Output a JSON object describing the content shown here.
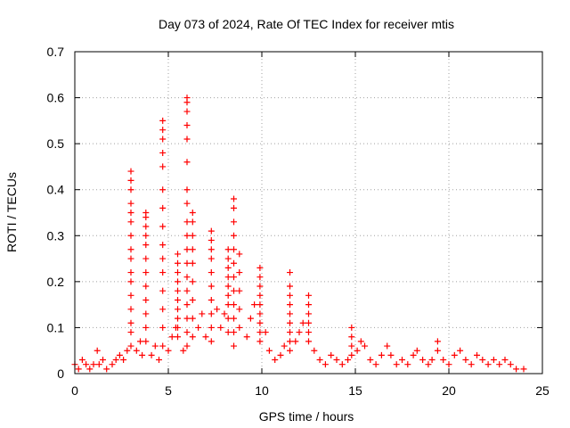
{
  "chart_data": {
    "type": "scatter",
    "title": "Day 073 of 2024, Rate Of TEC Index for receiver mtis",
    "xlabel": "GPS time / hours",
    "ylabel": "ROTI / TECUs",
    "xlim": [
      0,
      25
    ],
    "ylim": [
      0,
      0.7
    ],
    "xticks": [
      "0",
      "5",
      "10",
      "15",
      "20",
      "25"
    ],
    "yticks": [
      "0",
      "0.1",
      "0.2",
      "0.3",
      "0.4",
      "0.5",
      "0.6",
      "0.7"
    ],
    "grid": true,
    "marker": "plus",
    "color": "#ff0000",
    "series": [
      {
        "values": [
          [
            0.0,
            0.02
          ],
          [
            0.2,
            0.01
          ],
          [
            0.4,
            0.03
          ],
          [
            0.6,
            0.02
          ],
          [
            0.8,
            0.01
          ],
          [
            1.0,
            0.02
          ],
          [
            1.2,
            0.05
          ],
          [
            1.3,
            0.02
          ],
          [
            1.5,
            0.03
          ],
          [
            1.7,
            0.01
          ],
          [
            2.0,
            0.02
          ],
          [
            2.2,
            0.03
          ],
          [
            2.4,
            0.04
          ],
          [
            2.6,
            0.03
          ],
          [
            2.8,
            0.05
          ],
          [
            3.0,
            0.44
          ],
          [
            3.0,
            0.42
          ],
          [
            3.0,
            0.4
          ],
          [
            3.0,
            0.37
          ],
          [
            3.0,
            0.35
          ],
          [
            3.0,
            0.33
          ],
          [
            3.0,
            0.3
          ],
          [
            3.0,
            0.27
          ],
          [
            3.0,
            0.25
          ],
          [
            3.0,
            0.22
          ],
          [
            3.0,
            0.2
          ],
          [
            3.0,
            0.17
          ],
          [
            3.0,
            0.14
          ],
          [
            3.0,
            0.11
          ],
          [
            3.0,
            0.09
          ],
          [
            3.0,
            0.06
          ],
          [
            3.3,
            0.05
          ],
          [
            3.5,
            0.07
          ],
          [
            3.6,
            0.04
          ],
          [
            3.8,
            0.35
          ],
          [
            3.8,
            0.34
          ],
          [
            3.8,
            0.32
          ],
          [
            3.8,
            0.3
          ],
          [
            3.8,
            0.28
          ],
          [
            3.8,
            0.25
          ],
          [
            3.8,
            0.22
          ],
          [
            3.8,
            0.19
          ],
          [
            3.8,
            0.16
          ],
          [
            3.8,
            0.13
          ],
          [
            3.8,
            0.1
          ],
          [
            3.8,
            0.07
          ],
          [
            4.1,
            0.04
          ],
          [
            4.3,
            0.06
          ],
          [
            4.5,
            0.03
          ],
          [
            4.7,
            0.55
          ],
          [
            4.7,
            0.53
          ],
          [
            4.7,
            0.51
          ],
          [
            4.7,
            0.48
          ],
          [
            4.7,
            0.45
          ],
          [
            4.7,
            0.4
          ],
          [
            4.7,
            0.36
          ],
          [
            4.7,
            0.32
          ],
          [
            4.7,
            0.28
          ],
          [
            4.7,
            0.25
          ],
          [
            4.7,
            0.22
          ],
          [
            4.7,
            0.18
          ],
          [
            4.7,
            0.14
          ],
          [
            4.7,
            0.1
          ],
          [
            4.7,
            0.06
          ],
          [
            5.0,
            0.05
          ],
          [
            5.2,
            0.08
          ],
          [
            5.4,
            0.1
          ],
          [
            5.5,
            0.26
          ],
          [
            5.5,
            0.24
          ],
          [
            5.5,
            0.22
          ],
          [
            5.5,
            0.2
          ],
          [
            5.5,
            0.18
          ],
          [
            5.5,
            0.16
          ],
          [
            5.5,
            0.14
          ],
          [
            5.5,
            0.12
          ],
          [
            5.5,
            0.1
          ],
          [
            5.5,
            0.08
          ],
          [
            5.8,
            0.05
          ],
          [
            6.0,
            0.6
          ],
          [
            6.0,
            0.59
          ],
          [
            6.0,
            0.57
          ],
          [
            6.0,
            0.54
          ],
          [
            6.0,
            0.51
          ],
          [
            6.0,
            0.46
          ],
          [
            6.0,
            0.4
          ],
          [
            6.0,
            0.37
          ],
          [
            6.0,
            0.33
          ],
          [
            6.0,
            0.3
          ],
          [
            6.0,
            0.27
          ],
          [
            6.0,
            0.24
          ],
          [
            6.0,
            0.21
          ],
          [
            6.0,
            0.18
          ],
          [
            6.0,
            0.15
          ],
          [
            6.0,
            0.12
          ],
          [
            6.0,
            0.09
          ],
          [
            6.0,
            0.06
          ],
          [
            6.3,
            0.35
          ],
          [
            6.3,
            0.33
          ],
          [
            6.3,
            0.3
          ],
          [
            6.3,
            0.27
          ],
          [
            6.3,
            0.24
          ],
          [
            6.3,
            0.2
          ],
          [
            6.3,
            0.16
          ],
          [
            6.3,
            0.12
          ],
          [
            6.3,
            0.08
          ],
          [
            6.6,
            0.1
          ],
          [
            6.8,
            0.13
          ],
          [
            7.0,
            0.08
          ],
          [
            7.3,
            0.31
          ],
          [
            7.3,
            0.29
          ],
          [
            7.3,
            0.27
          ],
          [
            7.3,
            0.25
          ],
          [
            7.3,
            0.22
          ],
          [
            7.3,
            0.19
          ],
          [
            7.3,
            0.16
          ],
          [
            7.3,
            0.13
          ],
          [
            7.3,
            0.1
          ],
          [
            7.3,
            0.07
          ],
          [
            7.6,
            0.14
          ],
          [
            7.8,
            0.1
          ],
          [
            8.0,
            0.13
          ],
          [
            8.2,
            0.27
          ],
          [
            8.2,
            0.25
          ],
          [
            8.2,
            0.23
          ],
          [
            8.2,
            0.21
          ],
          [
            8.2,
            0.19
          ],
          [
            8.2,
            0.17
          ],
          [
            8.2,
            0.15
          ],
          [
            8.2,
            0.12
          ],
          [
            8.2,
            0.09
          ],
          [
            8.5,
            0.38
          ],
          [
            8.5,
            0.36
          ],
          [
            8.5,
            0.33
          ],
          [
            8.5,
            0.3
          ],
          [
            8.5,
            0.27
          ],
          [
            8.5,
            0.24
          ],
          [
            8.5,
            0.21
          ],
          [
            8.5,
            0.18
          ],
          [
            8.5,
            0.15
          ],
          [
            8.5,
            0.12
          ],
          [
            8.5,
            0.09
          ],
          [
            8.5,
            0.06
          ],
          [
            8.8,
            0.26
          ],
          [
            8.8,
            0.22
          ],
          [
            8.8,
            0.18
          ],
          [
            8.8,
            0.14
          ],
          [
            8.8,
            0.1
          ],
          [
            9.2,
            0.08
          ],
          [
            9.4,
            0.12
          ],
          [
            9.6,
            0.15
          ],
          [
            9.9,
            0.23
          ],
          [
            9.9,
            0.21
          ],
          [
            9.9,
            0.19
          ],
          [
            9.9,
            0.17
          ],
          [
            9.9,
            0.15
          ],
          [
            9.9,
            0.13
          ],
          [
            9.9,
            0.11
          ],
          [
            9.9,
            0.09
          ],
          [
            9.9,
            0.07
          ],
          [
            10.2,
            0.09
          ],
          [
            10.4,
            0.05
          ],
          [
            10.7,
            0.03
          ],
          [
            11.0,
            0.04
          ],
          [
            11.2,
            0.06
          ],
          [
            11.5,
            0.22
          ],
          [
            11.5,
            0.19
          ],
          [
            11.5,
            0.17
          ],
          [
            11.5,
            0.15
          ],
          [
            11.5,
            0.13
          ],
          [
            11.5,
            0.11
          ],
          [
            11.5,
            0.09
          ],
          [
            11.5,
            0.07
          ],
          [
            11.5,
            0.05
          ],
          [
            11.8,
            0.07
          ],
          [
            12.0,
            0.09
          ],
          [
            12.2,
            0.11
          ],
          [
            12.5,
            0.17
          ],
          [
            12.5,
            0.15
          ],
          [
            12.5,
            0.13
          ],
          [
            12.5,
            0.11
          ],
          [
            12.5,
            0.09
          ],
          [
            12.5,
            0.07
          ],
          [
            12.8,
            0.05
          ],
          [
            13.1,
            0.03
          ],
          [
            13.4,
            0.02
          ],
          [
            13.7,
            0.04
          ],
          [
            14.0,
            0.03
          ],
          [
            14.3,
            0.02
          ],
          [
            14.6,
            0.03
          ],
          [
            14.8,
            0.1
          ],
          [
            14.8,
            0.08
          ],
          [
            14.8,
            0.06
          ],
          [
            14.8,
            0.04
          ],
          [
            15.1,
            0.05
          ],
          [
            15.3,
            0.07
          ],
          [
            15.5,
            0.06
          ],
          [
            15.8,
            0.03
          ],
          [
            16.1,
            0.02
          ],
          [
            16.4,
            0.04
          ],
          [
            16.7,
            0.06
          ],
          [
            16.9,
            0.04
          ],
          [
            17.2,
            0.02
          ],
          [
            17.5,
            0.03
          ],
          [
            17.8,
            0.02
          ],
          [
            18.1,
            0.04
          ],
          [
            18.3,
            0.05
          ],
          [
            18.6,
            0.03
          ],
          [
            18.9,
            0.02
          ],
          [
            19.1,
            0.03
          ],
          [
            19.4,
            0.07
          ],
          [
            19.4,
            0.05
          ],
          [
            19.7,
            0.03
          ],
          [
            20.0,
            0.02
          ],
          [
            20.3,
            0.04
          ],
          [
            20.6,
            0.05
          ],
          [
            20.9,
            0.03
          ],
          [
            21.2,
            0.02
          ],
          [
            21.5,
            0.04
          ],
          [
            21.8,
            0.03
          ],
          [
            22.1,
            0.02
          ],
          [
            22.4,
            0.03
          ],
          [
            22.7,
            0.02
          ],
          [
            23.0,
            0.03
          ],
          [
            23.3,
            0.02
          ],
          [
            23.6,
            0.01
          ],
          [
            24.0,
            0.01
          ]
        ]
      }
    ]
  }
}
